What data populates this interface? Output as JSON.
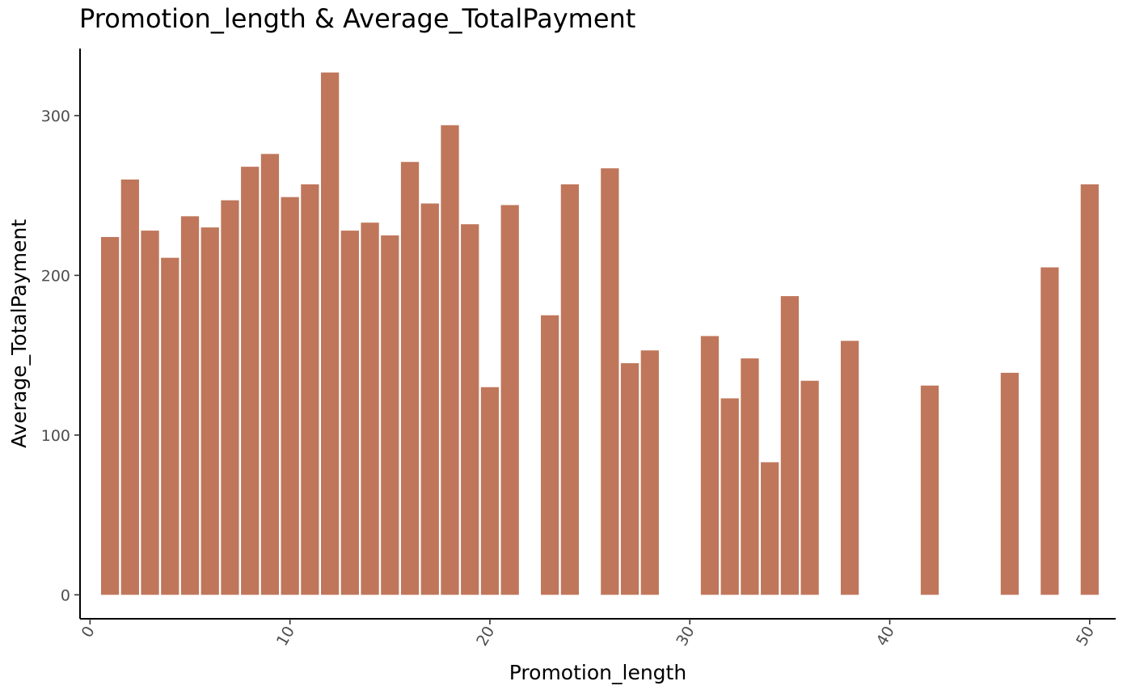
{
  "chart_data": {
    "type": "bar",
    "title": "Promotion_length & Average_TotalPayment",
    "xlabel": "Promotion_length",
    "ylabel": "Average_TotalPayment",
    "xlim": [
      -0.5,
      51.3
    ],
    "ylim": [
      -15,
      342
    ],
    "xticks": [
      0,
      10,
      20,
      30,
      40,
      50
    ],
    "yticks": [
      0,
      100,
      200,
      300
    ],
    "grid": false,
    "bar_color": "#C0765A",
    "x": [
      1,
      2,
      3,
      4,
      5,
      6,
      7,
      8,
      9,
      10,
      11,
      12,
      13,
      14,
      15,
      16,
      17,
      18,
      19,
      20,
      21,
      23,
      24,
      26,
      27,
      28,
      31,
      32,
      33,
      34,
      35,
      36,
      38,
      42,
      46,
      48,
      50
    ],
    "values": [
      224,
      260,
      228,
      211,
      237,
      230,
      247,
      268,
      276,
      249,
      257,
      327,
      228,
      233,
      225,
      271,
      245,
      294,
      232,
      130,
      244,
      175,
      257,
      267,
      145,
      153,
      162,
      123,
      148,
      83,
      187,
      134,
      159,
      131,
      139,
      205,
      257
    ]
  }
}
